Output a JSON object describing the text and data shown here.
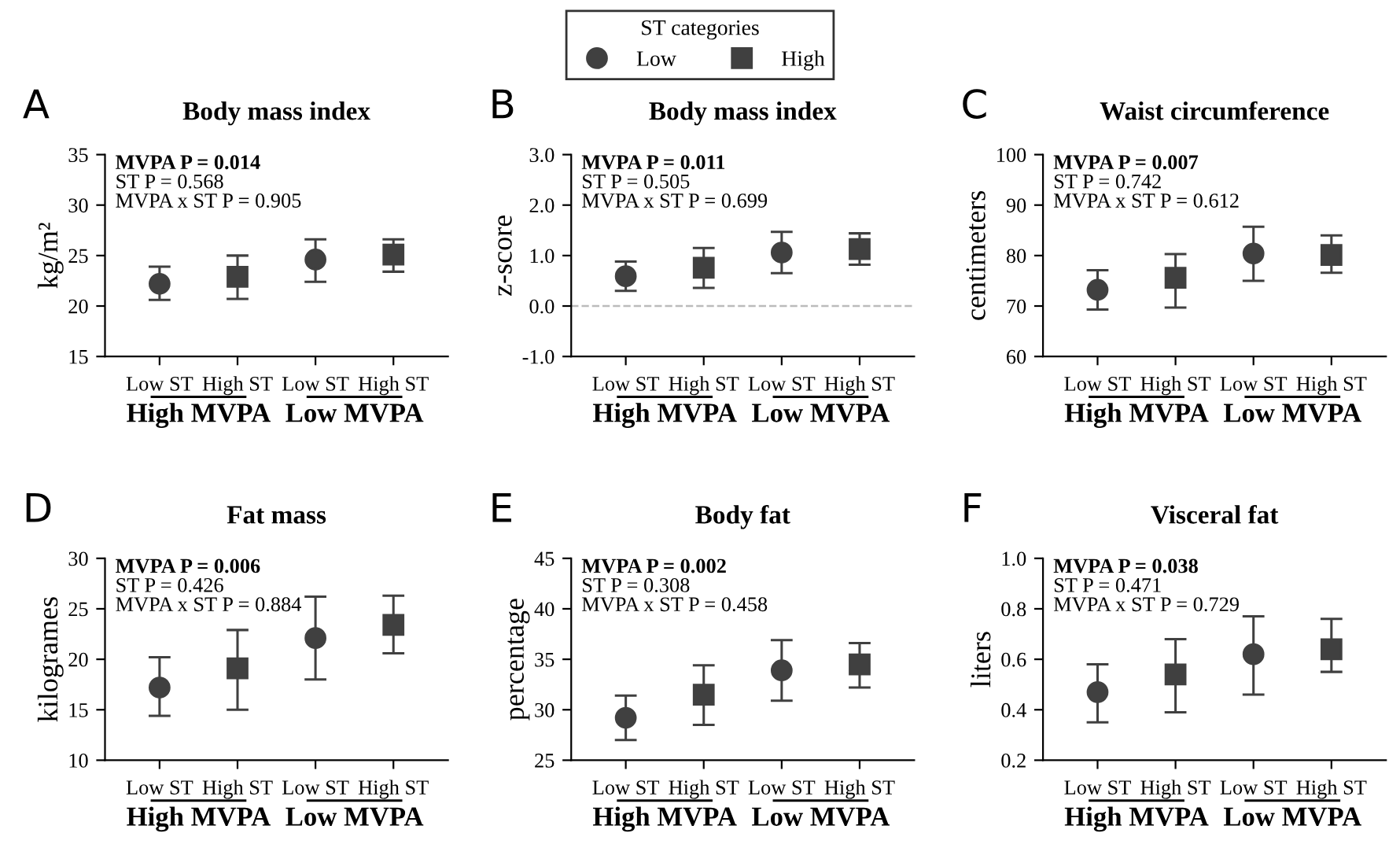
{
  "chart_data": [
    {
      "type": "scatter",
      "title": "Body mass index",
      "ylabel": "kg/m²",
      "legend": "top",
      "legend_title": "ST categories",
      "categories": [
        "Low ST",
        "High ST",
        "Low ST",
        "High ST"
      ],
      "annotations": [
        "A",
        "MVPA P = 0.014",
        "ST P = 0.568",
        "MVPA x ST P = 0.905",
        "High MVPA",
        "Low MVPA"
      ],
      "ylim": [
        15,
        35
      ],
      "yticks": [
        15,
        20,
        25,
        30,
        35
      ],
      "series": [
        {
          "name": "Low",
          "color": "#404040",
          "marker": "circle",
          "values": [
            22.2,
            null,
            24.6,
            null
          ],
          "errors": [
            [
              20.6,
              23.9
            ],
            null,
            [
              22.4,
              26.6
            ],
            null
          ]
        },
        {
          "name": "High",
          "color": "#404040",
          "marker": "square",
          "values": [
            null,
            22.9,
            null,
            25.1
          ],
          "errors": [
            null,
            [
              20.7,
              25.0
            ],
            null,
            [
              23.4,
              26.6
            ]
          ]
        }
      ]
    },
    {
      "type": "scatter",
      "title": "Body mass index",
      "ylabel": "z-score",
      "categories": [
        "Low ST",
        "High ST",
        "Low ST",
        "High ST"
      ],
      "annotations": [
        "B",
        "MVPA P = 0.011",
        "ST P = 0.505",
        "MVPA x ST P = 0.699",
        "High MVPA",
        "Low MVPA"
      ],
      "ylim": [
        -1.0,
        3.0
      ],
      "yticks": [
        {
          "value": -1.0,
          "label": "-1.0"
        },
        {
          "value": 0.0,
          "label": "0.0"
        },
        {
          "value": 1.0,
          "label": "1.0"
        },
        {
          "value": 2.0,
          "label": "2.0"
        },
        {
          "value": 3.0,
          "label": "3.0"
        }
      ],
      "ref_lines": [
        {
          "axis": "y",
          "value": 0,
          "color": "#bbbbbb",
          "line_style": "dashed"
        }
      ],
      "series": [
        {
          "color": "#404040",
          "marker": "circle",
          "values": [
            0.59,
            null,
            1.06,
            null
          ],
          "errors": [
            [
              0.3,
              0.88
            ],
            null,
            [
              0.65,
              1.47
            ],
            null
          ]
        },
        {
          "color": "#404040",
          "marker": "square",
          "values": [
            null,
            0.76,
            null,
            1.13
          ],
          "errors": [
            null,
            [
              0.36,
              1.15
            ],
            null,
            [
              0.82,
              1.44
            ]
          ]
        }
      ]
    },
    {
      "type": "scatter",
      "title": "Waist circumference",
      "ylabel": "centimeters",
      "categories": [
        "Low ST",
        "High ST",
        "Low ST",
        "High ST"
      ],
      "annotations": [
        "C",
        "MVPA P = 0.007",
        "ST P = 0.742",
        "MVPA x ST P = 0.612",
        "High MVPA",
        "Low MVPA"
      ],
      "ylim": [
        60,
        100
      ],
      "yticks": [
        60,
        70,
        80,
        90,
        100
      ],
      "series": [
        {
          "color": "#404040",
          "marker": "circle",
          "values": [
            73.2,
            null,
            80.4,
            null
          ],
          "errors": [
            [
              69.3,
              77.1
            ],
            null,
            [
              75.0,
              85.7
            ],
            null
          ]
        },
        {
          "color": "#404040",
          "marker": "square",
          "values": [
            null,
            75.6,
            null,
            80.1
          ],
          "errors": [
            null,
            [
              69.7,
              80.3
            ],
            null,
            [
              76.6,
              84.0
            ]
          ]
        }
      ]
    },
    {
      "type": "scatter",
      "title": "Fat mass",
      "ylabel": "kilogrames",
      "categories": [
        "Low ST",
        "High ST",
        "Low ST",
        "High ST"
      ],
      "annotations": [
        "D",
        "MVPA P = 0.006",
        "ST P = 0.426",
        "MVPA x ST P = 0.884",
        "High MVPA",
        "Low MVPA"
      ],
      "ylim": [
        10,
        30
      ],
      "yticks": [
        10,
        15,
        20,
        25,
        30
      ],
      "series": [
        {
          "color": "#404040",
          "marker": "circle",
          "values": [
            17.2,
            null,
            22.1,
            null
          ],
          "errors": [
            [
              14.4,
              20.2
            ],
            null,
            [
              18.0,
              26.2
            ],
            null
          ]
        },
        {
          "color": "#404040",
          "marker": "square",
          "values": [
            null,
            19.1,
            null,
            23.4
          ],
          "errors": [
            null,
            [
              15.0,
              22.9
            ],
            null,
            [
              20.6,
              26.3
            ]
          ]
        }
      ]
    },
    {
      "type": "scatter",
      "title": "Body fat",
      "ylabel": "percentage",
      "categories": [
        "Low ST",
        "High ST",
        "Low ST",
        "High ST"
      ],
      "annotations": [
        "E",
        "MVPA P = 0.002",
        "ST P = 0.308",
        "MVPA x ST P = 0.458",
        "High MVPA",
        "Low MVPA"
      ],
      "ylim": [
        25,
        45
      ],
      "yticks": [
        25,
        30,
        35,
        40,
        45
      ],
      "series": [
        {
          "color": "#404040",
          "marker": "circle",
          "values": [
            29.2,
            null,
            33.9,
            null
          ],
          "errors": [
            [
              27.0,
              31.4
            ],
            null,
            [
              30.9,
              36.9
            ],
            null
          ]
        },
        {
          "color": "#404040",
          "marker": "square",
          "values": [
            null,
            31.5,
            null,
            34.5
          ],
          "errors": [
            null,
            [
              28.5,
              34.4
            ],
            null,
            [
              32.2,
              36.6
            ]
          ]
        }
      ]
    },
    {
      "type": "scatter",
      "title": "Visceral fat",
      "ylabel": "liters",
      "categories": [
        "Low ST",
        "High ST",
        "Low ST",
        "High ST"
      ],
      "annotations": [
        "F",
        "MVPA P = 0.038",
        "ST P = 0.471",
        "MVPA x ST P = 0.729",
        "High MVPA",
        "Low MVPA"
      ],
      "ylim": [
        0.2,
        1.0
      ],
      "yticks": [
        {
          "value": 0.2,
          "label": "0.2"
        },
        {
          "value": 0.4,
          "label": "0.4"
        },
        {
          "value": 0.6,
          "label": "0.6"
        },
        {
          "value": 0.8,
          "label": "0.8"
        },
        {
          "value": 1.0,
          "label": "1.0"
        }
      ],
      "series": [
        {
          "color": "#404040",
          "marker": "circle",
          "values": [
            0.47,
            null,
            0.62,
            null
          ],
          "errors": [
            [
              0.35,
              0.58
            ],
            null,
            [
              0.46,
              0.77
            ],
            null
          ]
        },
        {
          "color": "#404040",
          "marker": "square",
          "values": [
            null,
            0.54,
            null,
            0.64
          ],
          "errors": [
            null,
            [
              0.39,
              0.68
            ],
            null,
            [
              0.55,
              0.76
            ]
          ]
        }
      ]
    }
  ]
}
